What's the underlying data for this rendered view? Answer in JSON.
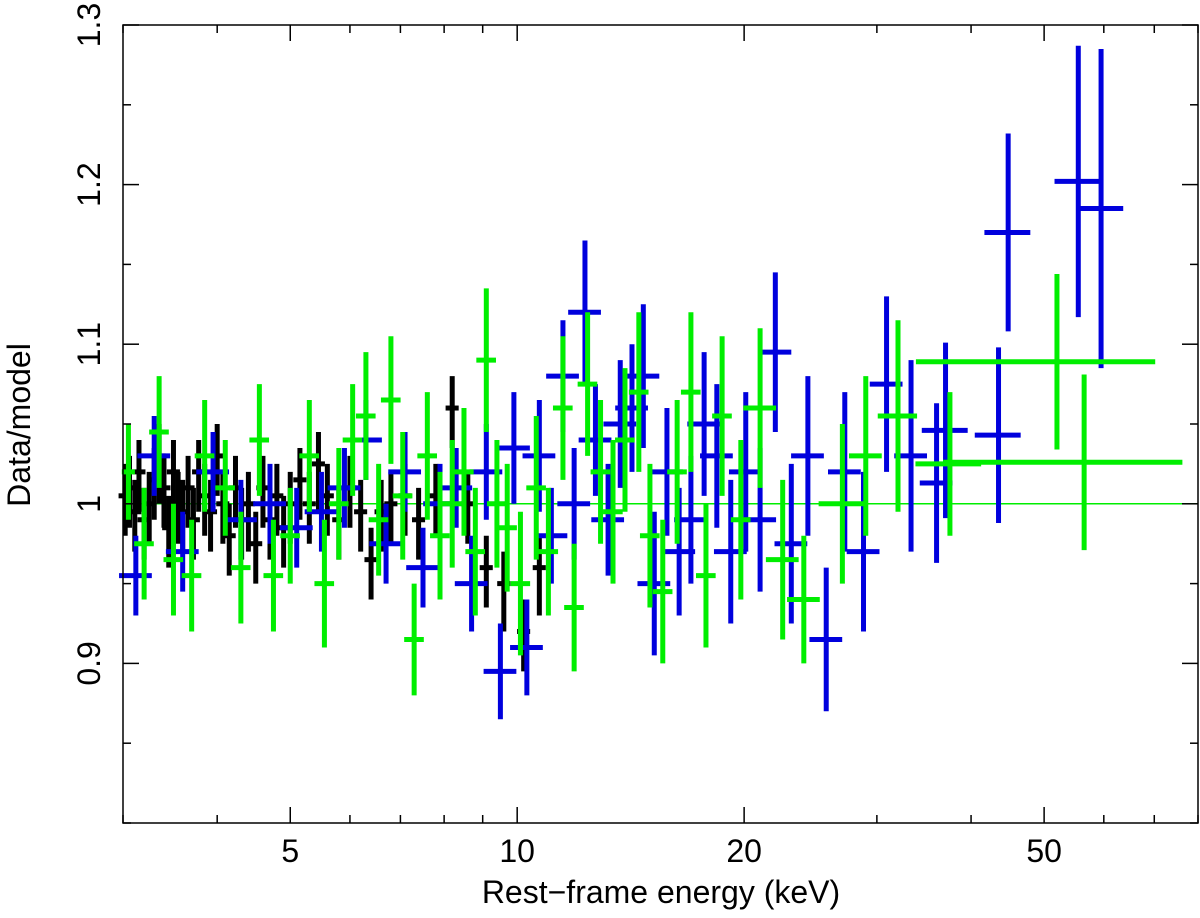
{
  "chart_data": {
    "type": "scatter",
    "xlabel": "Rest−frame energy (keV)",
    "ylabel": "Data/model",
    "x_scale": "log",
    "xlim": [
      3,
      80
    ],
    "ylim": [
      0.8,
      1.3
    ],
    "x_ticks": [
      5,
      10,
      20,
      50
    ],
    "x_tick_labels": [
      "5",
      "10",
      "20",
      "50"
    ],
    "y_ticks": [
      0.9,
      1.0,
      1.1,
      1.2,
      1.3
    ],
    "y_tick_labels": [
      "0.9",
      "1",
      "1.1",
      "1.2",
      "1.3"
    ],
    "reference_line": 1.0,
    "reference_color": "#00ee00",
    "grid": false,
    "legend": "none",
    "series": [
      {
        "color": "#000000",
        "points": [
          [
            3.02,
            1.005,
            0.02,
            0.025,
            0.02
          ],
          [
            3.06,
            1.01,
            0.02,
            0.025,
            0.02
          ],
          [
            3.11,
            0.995,
            0.02,
            0.025,
            0.02
          ],
          [
            3.15,
            1.02,
            0.02,
            0.025,
            0.02
          ],
          [
            3.2,
            0.99,
            0.02,
            0.025,
            0.02
          ],
          [
            3.25,
            1.0,
            0.02,
            0.025,
            0.02
          ],
          [
            3.3,
            1.015,
            0.02,
            0.025,
            0.02
          ],
          [
            3.35,
            1.03,
            0.02,
            0.03,
            0.02
          ],
          [
            3.4,
            1.01,
            0.02,
            0.025,
            0.02
          ],
          [
            3.45,
            0.985,
            0.02,
            0.025,
            0.02
          ],
          [
            3.5,
            1.02,
            0.02,
            0.025,
            0.02
          ],
          [
            3.55,
            1.0,
            0.02,
            0.025,
            0.02
          ],
          [
            3.6,
            0.995,
            0.02,
            0.025,
            0.02
          ],
          [
            3.66,
            1.01,
            0.02,
            0.025,
            0.02
          ],
          [
            3.72,
            0.99,
            0.02,
            0.025,
            0.02
          ],
          [
            3.78,
            1.02,
            0.02,
            0.025,
            0.02
          ],
          [
            3.85,
            1.005,
            0.02,
            0.025,
            0.02
          ],
          [
            3.92,
            0.995,
            0.02,
            0.025,
            0.02
          ],
          [
            4.0,
            1.03,
            0.02,
            0.025,
            0.02
          ],
          [
            4.07,
            1.0,
            0.02,
            0.025,
            0.02
          ],
          [
            4.15,
            0.98,
            0.02,
            0.025,
            0.02
          ],
          [
            4.23,
            1.01,
            0.02,
            0.025,
            0.02
          ],
          [
            4.31,
            0.99,
            0.02,
            0.025,
            0.02
          ],
          [
            4.4,
            1.0,
            0.02,
            0.03,
            0.02
          ],
          [
            4.5,
            0.975,
            0.02,
            0.025,
            0.02
          ],
          [
            4.6,
            1.01,
            0.02,
            0.025,
            0.02
          ],
          [
            4.7,
            0.99,
            0.02,
            0.025,
            0.02
          ],
          [
            4.8,
            1.005,
            0.02,
            0.025,
            0.02
          ],
          [
            4.9,
            0.985,
            0.02,
            0.025,
            0.02
          ],
          [
            5.0,
            1.0,
            0.02,
            0.025,
            0.02
          ],
          [
            5.15,
            1.015,
            0.02,
            0.025,
            0.02
          ],
          [
            5.3,
            1.0,
            0.02,
            0.025,
            0.02
          ],
          [
            5.45,
            1.025,
            0.02,
            0.03,
            0.02
          ],
          [
            5.6,
            1.005,
            0.02,
            0.025,
            0.02
          ],
          [
            5.8,
            0.99,
            0.02,
            0.025,
            0.02
          ],
          [
            6.0,
            1.01,
            0.02,
            0.025,
            0.02
          ],
          [
            6.2,
            0.995,
            0.02,
            0.025,
            0.02
          ],
          [
            6.4,
            0.965,
            0.02,
            0.025,
            0.02
          ],
          [
            6.6,
            0.995,
            0.02,
            0.025,
            0.02
          ],
          [
            6.8,
            1.0,
            0.02,
            0.025,
            0.02
          ],
          [
            7.1,
            1.005,
            0.02,
            0.025,
            0.02
          ],
          [
            7.4,
            0.99,
            0.02,
            0.025,
            0.02
          ],
          [
            7.8,
            1.005,
            0.02,
            0.025,
            0.02
          ],
          [
            8.2,
            1.06,
            0.02,
            0.025,
            0.02
          ],
          [
            8.6,
            1.0,
            0.02,
            0.025,
            0.02
          ],
          [
            9.1,
            0.96,
            0.02,
            0.025,
            0.02
          ],
          [
            9.6,
            0.95,
            0.02,
            0.03,
            0.02
          ],
          [
            10.2,
            0.92,
            0.02,
            0.025,
            0.02
          ],
          [
            10.7,
            0.96,
            0.02,
            0.03,
            0.02
          ]
        ]
      },
      {
        "color": "#0000dd",
        "points": [
          [
            3.12,
            0.955,
            0.05,
            0.025,
            0.025
          ],
          [
            3.3,
            1.03,
            0.05,
            0.025,
            0.025
          ],
          [
            3.6,
            0.97,
            0.05,
            0.025,
            0.025
          ],
          [
            3.95,
            1.02,
            0.05,
            0.025,
            0.025
          ],
          [
            4.3,
            0.99,
            0.05,
            0.025,
            0.025
          ],
          [
            4.7,
            1.0,
            0.05,
            0.025,
            0.025
          ],
          [
            5.1,
            0.985,
            0.05,
            0.025,
            0.025
          ],
          [
            5.5,
            0.995,
            0.05,
            0.025,
            0.025
          ],
          [
            5.9,
            1.01,
            0.05,
            0.025,
            0.025
          ],
          [
            6.3,
            1.04,
            0.05,
            0.025,
            0.025
          ],
          [
            6.7,
            0.975,
            0.05,
            0.025,
            0.025
          ],
          [
            7.1,
            1.02,
            0.05,
            0.025,
            0.025
          ],
          [
            7.5,
            0.96,
            0.05,
            0.025,
            0.025
          ],
          [
            7.9,
            1.0,
            0.05,
            0.025,
            0.025
          ],
          [
            8.3,
            1.01,
            0.05,
            0.025,
            0.025
          ],
          [
            8.7,
            0.95,
            0.05,
            0.03,
            0.03
          ],
          [
            9.1,
            1.02,
            0.05,
            0.03,
            0.03
          ],
          [
            9.5,
            0.895,
            0.05,
            0.03,
            0.03
          ],
          [
            9.9,
            1.035,
            0.05,
            0.035,
            0.035
          ],
          [
            10.3,
            0.91,
            0.05,
            0.03,
            0.03
          ],
          [
            10.7,
            1.03,
            0.05,
            0.035,
            0.035
          ],
          [
            11.1,
            0.98,
            0.05,
            0.03,
            0.03
          ],
          [
            11.5,
            1.08,
            0.05,
            0.035,
            0.035
          ],
          [
            11.9,
            1.0,
            0.05,
            0.035,
            0.035
          ],
          [
            12.3,
            1.12,
            0.05,
            0.045,
            0.045
          ],
          [
            12.7,
            1.04,
            0.05,
            0.035,
            0.035
          ],
          [
            13.2,
            0.99,
            0.05,
            0.035,
            0.035
          ],
          [
            13.7,
            1.05,
            0.05,
            0.04,
            0.04
          ],
          [
            14.2,
            1.06,
            0.05,
            0.04,
            0.04
          ],
          [
            14.7,
            1.08,
            0.05,
            0.045,
            0.045
          ],
          [
            15.2,
            0.95,
            0.05,
            0.045,
            0.045
          ],
          [
            15.8,
            1.02,
            0.05,
            0.04,
            0.04
          ],
          [
            16.4,
            0.97,
            0.05,
            0.04,
            0.04
          ],
          [
            17.0,
            0.99,
            0.05,
            0.04,
            0.04
          ],
          [
            17.7,
            1.05,
            0.05,
            0.045,
            0.045
          ],
          [
            18.4,
            1.03,
            0.05,
            0.045,
            0.045
          ],
          [
            19.2,
            0.97,
            0.05,
            0.045,
            0.045
          ],
          [
            20.1,
            1.02,
            0.05,
            0.05,
            0.05
          ],
          [
            21.0,
            0.99,
            0.05,
            0.045,
            0.045
          ],
          [
            22.0,
            1.095,
            0.05,
            0.05,
            0.05
          ],
          [
            23.1,
            0.975,
            0.05,
            0.05,
            0.05
          ],
          [
            24.3,
            1.03,
            0.05,
            0.05,
            0.05
          ],
          [
            25.7,
            0.915,
            0.05,
            0.045,
            0.045
          ],
          [
            27.2,
            1.02,
            0.05,
            0.05,
            0.05
          ],
          [
            28.8,
            0.97,
            0.05,
            0.05,
            0.05
          ],
          [
            30.9,
            1.075,
            0.05,
            0.055,
            0.055
          ],
          [
            33.3,
            1.03,
            0.05,
            0.06,
            0.06
          ],
          [
            36.0,
            1.013,
            0.05,
            0.05,
            0.05
          ],
          [
            37.0,
            1.046,
            0.07,
            0.055,
            0.055
          ],
          [
            43.5,
            1.043,
            0.07,
            0.055,
            0.055
          ],
          [
            44.8,
            1.17,
            0.07,
            0.062,
            0.062
          ],
          [
            55.5,
            1.202,
            0.07,
            0.085,
            0.085
          ],
          [
            59.5,
            1.185,
            0.07,
            0.1,
            0.1
          ]
        ]
      },
      {
        "color": "#00ee00",
        "points": [
          [
            3.05,
            1.02,
            0.02,
            0.03,
            0.03
          ],
          [
            3.2,
            0.975,
            0.03,
            0.035,
            0.035
          ],
          [
            3.35,
            1.045,
            0.03,
            0.035,
            0.035
          ],
          [
            3.5,
            0.965,
            0.03,
            0.035,
            0.035
          ],
          [
            3.7,
            0.955,
            0.03,
            0.035,
            0.035
          ],
          [
            3.85,
            1.03,
            0.03,
            0.035,
            0.035
          ],
          [
            4.1,
            1.01,
            0.03,
            0.03,
            0.03
          ],
          [
            4.3,
            0.96,
            0.03,
            0.035,
            0.035
          ],
          [
            4.55,
            1.04,
            0.03,
            0.035,
            0.035
          ],
          [
            4.75,
            0.955,
            0.03,
            0.035,
            0.035
          ],
          [
            5.0,
            0.98,
            0.03,
            0.03,
            0.03
          ],
          [
            5.3,
            1.03,
            0.03,
            0.035,
            0.035
          ],
          [
            5.55,
            0.95,
            0.03,
            0.04,
            0.04
          ],
          [
            5.8,
            1.0,
            0.03,
            0.035,
            0.035
          ],
          [
            6.05,
            1.04,
            0.03,
            0.035,
            0.035
          ],
          [
            6.3,
            1.055,
            0.03,
            0.04,
            0.04
          ],
          [
            6.55,
            0.99,
            0.03,
            0.035,
            0.035
          ],
          [
            6.8,
            1.065,
            0.03,
            0.04,
            0.04
          ],
          [
            7.05,
            1.005,
            0.03,
            0.04,
            0.04
          ],
          [
            7.3,
            0.915,
            0.03,
            0.035,
            0.035
          ],
          [
            7.6,
            1.03,
            0.03,
            0.04,
            0.04
          ],
          [
            7.9,
            0.98,
            0.03,
            0.04,
            0.04
          ],
          [
            8.2,
            1.0,
            0.03,
            0.04,
            0.04
          ],
          [
            8.5,
            1.02,
            0.03,
            0.04,
            0.04
          ],
          [
            8.8,
            0.97,
            0.03,
            0.04,
            0.04
          ],
          [
            9.1,
            1.09,
            0.03,
            0.045,
            0.045
          ],
          [
            9.4,
            1.0,
            0.03,
            0.04,
            0.04
          ],
          [
            9.7,
            0.985,
            0.03,
            0.04,
            0.04
          ],
          [
            10.1,
            0.95,
            0.03,
            0.045,
            0.045
          ],
          [
            10.6,
            1.01,
            0.03,
            0.045,
            0.045
          ],
          [
            11.0,
            0.97,
            0.03,
            0.04,
            0.04
          ],
          [
            11.5,
            1.06,
            0.03,
            0.045,
            0.045
          ],
          [
            11.9,
            0.935,
            0.03,
            0.04,
            0.04
          ],
          [
            12.4,
            1.075,
            0.03,
            0.045,
            0.045
          ],
          [
            12.9,
            1.02,
            0.03,
            0.045,
            0.045
          ],
          [
            13.4,
            0.995,
            0.03,
            0.045,
            0.045
          ],
          [
            13.9,
            1.04,
            0.03,
            0.045,
            0.045
          ],
          [
            14.5,
            1.07,
            0.03,
            0.05,
            0.05
          ],
          [
            15.0,
            0.98,
            0.03,
            0.045,
            0.045
          ],
          [
            15.6,
            0.945,
            0.03,
            0.045,
            0.045
          ],
          [
            16.3,
            1.02,
            0.03,
            0.045,
            0.045
          ],
          [
            17.0,
            1.07,
            0.03,
            0.05,
            0.05
          ],
          [
            17.8,
            0.955,
            0.03,
            0.045,
            0.045
          ],
          [
            18.7,
            1.055,
            0.03,
            0.05,
            0.05
          ],
          [
            19.8,
            0.99,
            0.03,
            0.05,
            0.05
          ],
          [
            21.0,
            1.06,
            0.05,
            0.05,
            0.05
          ],
          [
            22.5,
            0.965,
            0.05,
            0.05,
            0.05
          ],
          [
            24.0,
            0.94,
            0.05,
            0.04,
            0.04
          ],
          [
            27.0,
            1.0,
            0.07,
            0.05,
            0.05
          ],
          [
            29.0,
            1.03,
            0.05,
            0.05,
            0.05
          ],
          [
            32.0,
            1.055,
            0.06,
            0.06,
            0.06
          ],
          [
            37.5,
            1.025,
            0.1,
            0.045,
            0.045
          ],
          [
            52.0,
            1.089,
            0.35,
            0.055,
            0.055
          ],
          [
            56.5,
            1.026,
            0.35,
            0.055,
            0.055
          ]
        ]
      }
    ]
  }
}
